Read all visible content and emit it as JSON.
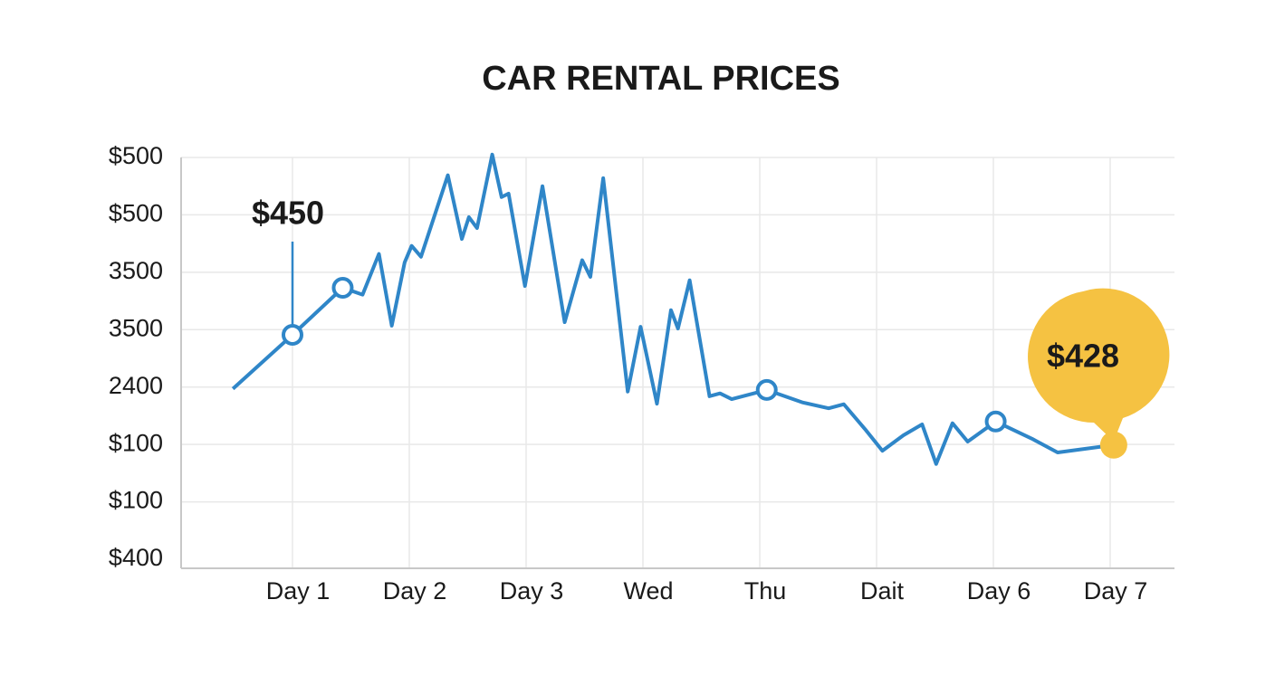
{
  "chart_data": {
    "type": "line",
    "title": "CAR RENTAL PRICES",
    "xlim": [
      0,
      8.5
    ],
    "xticks": [
      {
        "value": 1,
        "label": "Day 1"
      },
      {
        "value": 2,
        "label": "Day 2"
      },
      {
        "value": 3,
        "label": "Day 3"
      },
      {
        "value": 4,
        "label": "Wed"
      },
      {
        "value": 5,
        "label": "Thu"
      },
      {
        "value": 6,
        "label": "Dait"
      },
      {
        "value": 7,
        "label": "Day 6"
      },
      {
        "value": 8,
        "label": "Day 7"
      }
    ],
    "ylim": [
      0,
      7
    ],
    "yticks": [
      {
        "value": 0,
        "label": "$400"
      },
      {
        "value": 1,
        "label": "$100"
      },
      {
        "value": 2,
        "label": "$100"
      },
      {
        "value": 3,
        "label": "2400"
      },
      {
        "value": 4,
        "label": "3500"
      },
      {
        "value": 5,
        "label": "3500"
      },
      {
        "value": 6,
        "label": "$500"
      },
      {
        "value": 7,
        "label": "$500"
      }
    ],
    "grid": true,
    "x": [
      0.49,
      1.0,
      1.43,
      1.6,
      1.74,
      1.85,
      1.96,
      2.02,
      2.1,
      2.33,
      2.45,
      2.51,
      2.58,
      2.71,
      2.79,
      2.85,
      2.99,
      3.14,
      3.33,
      3.48,
      3.55,
      3.66,
      3.87,
      3.98,
      4.12,
      4.24,
      4.3,
      4.4,
      4.57,
      4.66,
      4.76,
      5.06,
      5.37,
      5.59,
      5.72,
      5.9,
      6.05,
      6.23,
      6.39,
      6.51,
      6.65,
      6.78,
      7.02,
      7.33,
      7.55,
      8.03
    ],
    "series": [
      {
        "color": "#2f86c8",
        "values": [
          2.97,
          3.91,
          4.73,
          4.61,
          5.32,
          4.07,
          5.17,
          5.46,
          5.27,
          6.69,
          5.58,
          5.96,
          5.77,
          7.05,
          6.31,
          6.37,
          4.76,
          6.5,
          4.13,
          5.21,
          4.92,
          6.64,
          2.92,
          4.05,
          2.71,
          4.34,
          4.02,
          4.86,
          2.84,
          2.89,
          2.79,
          2.95,
          2.73,
          2.63,
          2.7,
          2.27,
          1.89,
          2.16,
          2.35,
          1.66,
          2.37,
          2.05,
          2.4,
          2.1,
          1.86,
          1.99
        ]
      }
    ],
    "highlight_color": "#f5c242",
    "annotations": [
      "$450",
      "$428"
    ]
  }
}
